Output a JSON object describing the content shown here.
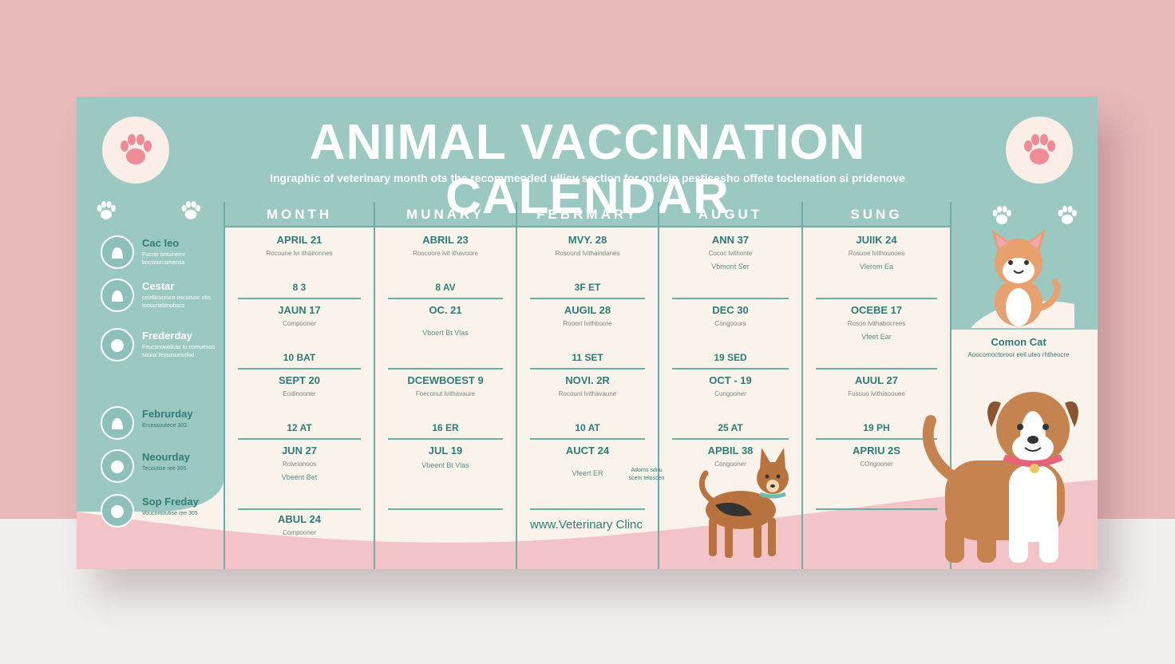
{
  "poster": {
    "title": "ANIMAL VACCINATION CALENDAR",
    "subtitle": "Ingraphic of veterinary month ots the recommended ullisy section for ondein pestisesho offete toclenation si pridenove",
    "clinic": "www.Veterinary Clinc",
    "side_note": "Adorns sdnu scem teloscen"
  },
  "colors": {
    "background": "#e9b9ba",
    "teal": "#9bc9c1",
    "teal_dark": "#2f7c75",
    "cream": "#faf3ec",
    "pink": "#f0bcc0",
    "paw": "#ef8b96"
  },
  "sidebar": [
    {
      "name": "Cac Ieo",
      "desc": "Fucctir bntuinemr bocsoorcomensa",
      "icon": "cat-face-icon"
    },
    {
      "name": "Cestar",
      "desc": "ceotbcucruce oscucusc obs tooucrtebtnobscs",
      "icon": "cat-face-icon"
    },
    {
      "name": "Frederday",
      "desc": "Feucsnowtdcas tu eomuesoo souux fessusuessfoo",
      "icon": "dog-face-icon"
    },
    {
      "name": "Februrday",
      "desc": "Ersessoutece 303",
      "icon": "cat-face-icon"
    },
    {
      "name": "Neourday",
      "desc": "Tecoutise ree 305",
      "icon": "dog-face-icon"
    },
    {
      "name": "Sop Freday",
      "desc": "Voucomoutise ree 305",
      "icon": "dog-face-icon"
    }
  ],
  "columns": [
    {
      "header": "MONTH",
      "cells": [
        {
          "date": "APRIL 21",
          "note": "Rocoune lvi ithaironnes",
          "extra": "",
          "code": "8 3"
        },
        {
          "date": "JAUN 17",
          "note": "Compooner",
          "extra": "",
          "code": "10 BAT"
        },
        {
          "date": "SEPT 20",
          "note": "Eodinooner",
          "extra": "",
          "code": "12 AT"
        },
        {
          "date": "JUN 27",
          "note": "Rolvrionoos",
          "extra": "Vbeent  Bet",
          "code": ""
        },
        {
          "date": "ABUL 24",
          "note": "Compooner",
          "extra": "",
          "code": ""
        }
      ]
    },
    {
      "header": "MUNARY",
      "cells": [
        {
          "date": "ABRIL 23",
          "note": "Roocoore lvit ithavoore",
          "extra": "",
          "code": "8 AV"
        },
        {
          "date": "OC. 21",
          "note": "",
          "extra": "Vboert  Bt  Vlas",
          "code": ""
        },
        {
          "date": "DCEWBOEST 9",
          "note": "Foeconut lvithavaure",
          "extra": "",
          "code": "16 ER"
        },
        {
          "date": "JUL 19",
          "note": "",
          "extra": "Vbeent  Bt  Vlas",
          "code": ""
        }
      ]
    },
    {
      "header": "FEBRMARY",
      "cells": [
        {
          "date": "MVY. 28",
          "note": "Rosound lvithaindanes",
          "extra": "",
          "code": "3F ET"
        },
        {
          "date": "AUGIL 28",
          "note": "Rooort lvithboore",
          "extra": "",
          "code": "11 SET"
        },
        {
          "date": "NOVI. 2R",
          "note": "Rocount lvithavaune",
          "extra": "",
          "code": "10 AT"
        },
        {
          "date": "AUCT 24",
          "note": "",
          "extra": "Vfeert  ER",
          "code": ""
        }
      ]
    },
    {
      "header": "AUGUT",
      "cells": [
        {
          "date": "ANN 37",
          "note": "Cococ lvithonte",
          "extra": "Vbmont  Ser",
          "code": ""
        },
        {
          "date": "DEC 30",
          "note": "Congoours",
          "extra": "",
          "code": "19 SED"
        },
        {
          "date": "OCT - 19",
          "note": "Cungooner",
          "extra": "",
          "code": "25 AT"
        },
        {
          "date": "APBIL 38",
          "note": "Congooner",
          "extra": "",
          "code": ""
        }
      ]
    },
    {
      "header": "SUNG",
      "cells": [
        {
          "date": "JUIIK 24",
          "note": "Rosuoe lvithouooes",
          "extra": "Vlerom  Ea",
          "code": ""
        },
        {
          "date": "OCEBE 17",
          "note": "Rosoo lvithabocrees",
          "extra": "Vfeet  Ear",
          "code": ""
        },
        {
          "date": "AUUL 27",
          "note": "Fusuuo lvithiaoouee",
          "extra": "",
          "code": "19 PH"
        },
        {
          "date": "APRIU 2S",
          "note": "COngooner",
          "extra": "",
          "code": ""
        }
      ]
    }
  ],
  "cat": {
    "label": "Comon Cat",
    "desc": "Aoocomoctoroor eeil.uteo rhtheocre"
  }
}
